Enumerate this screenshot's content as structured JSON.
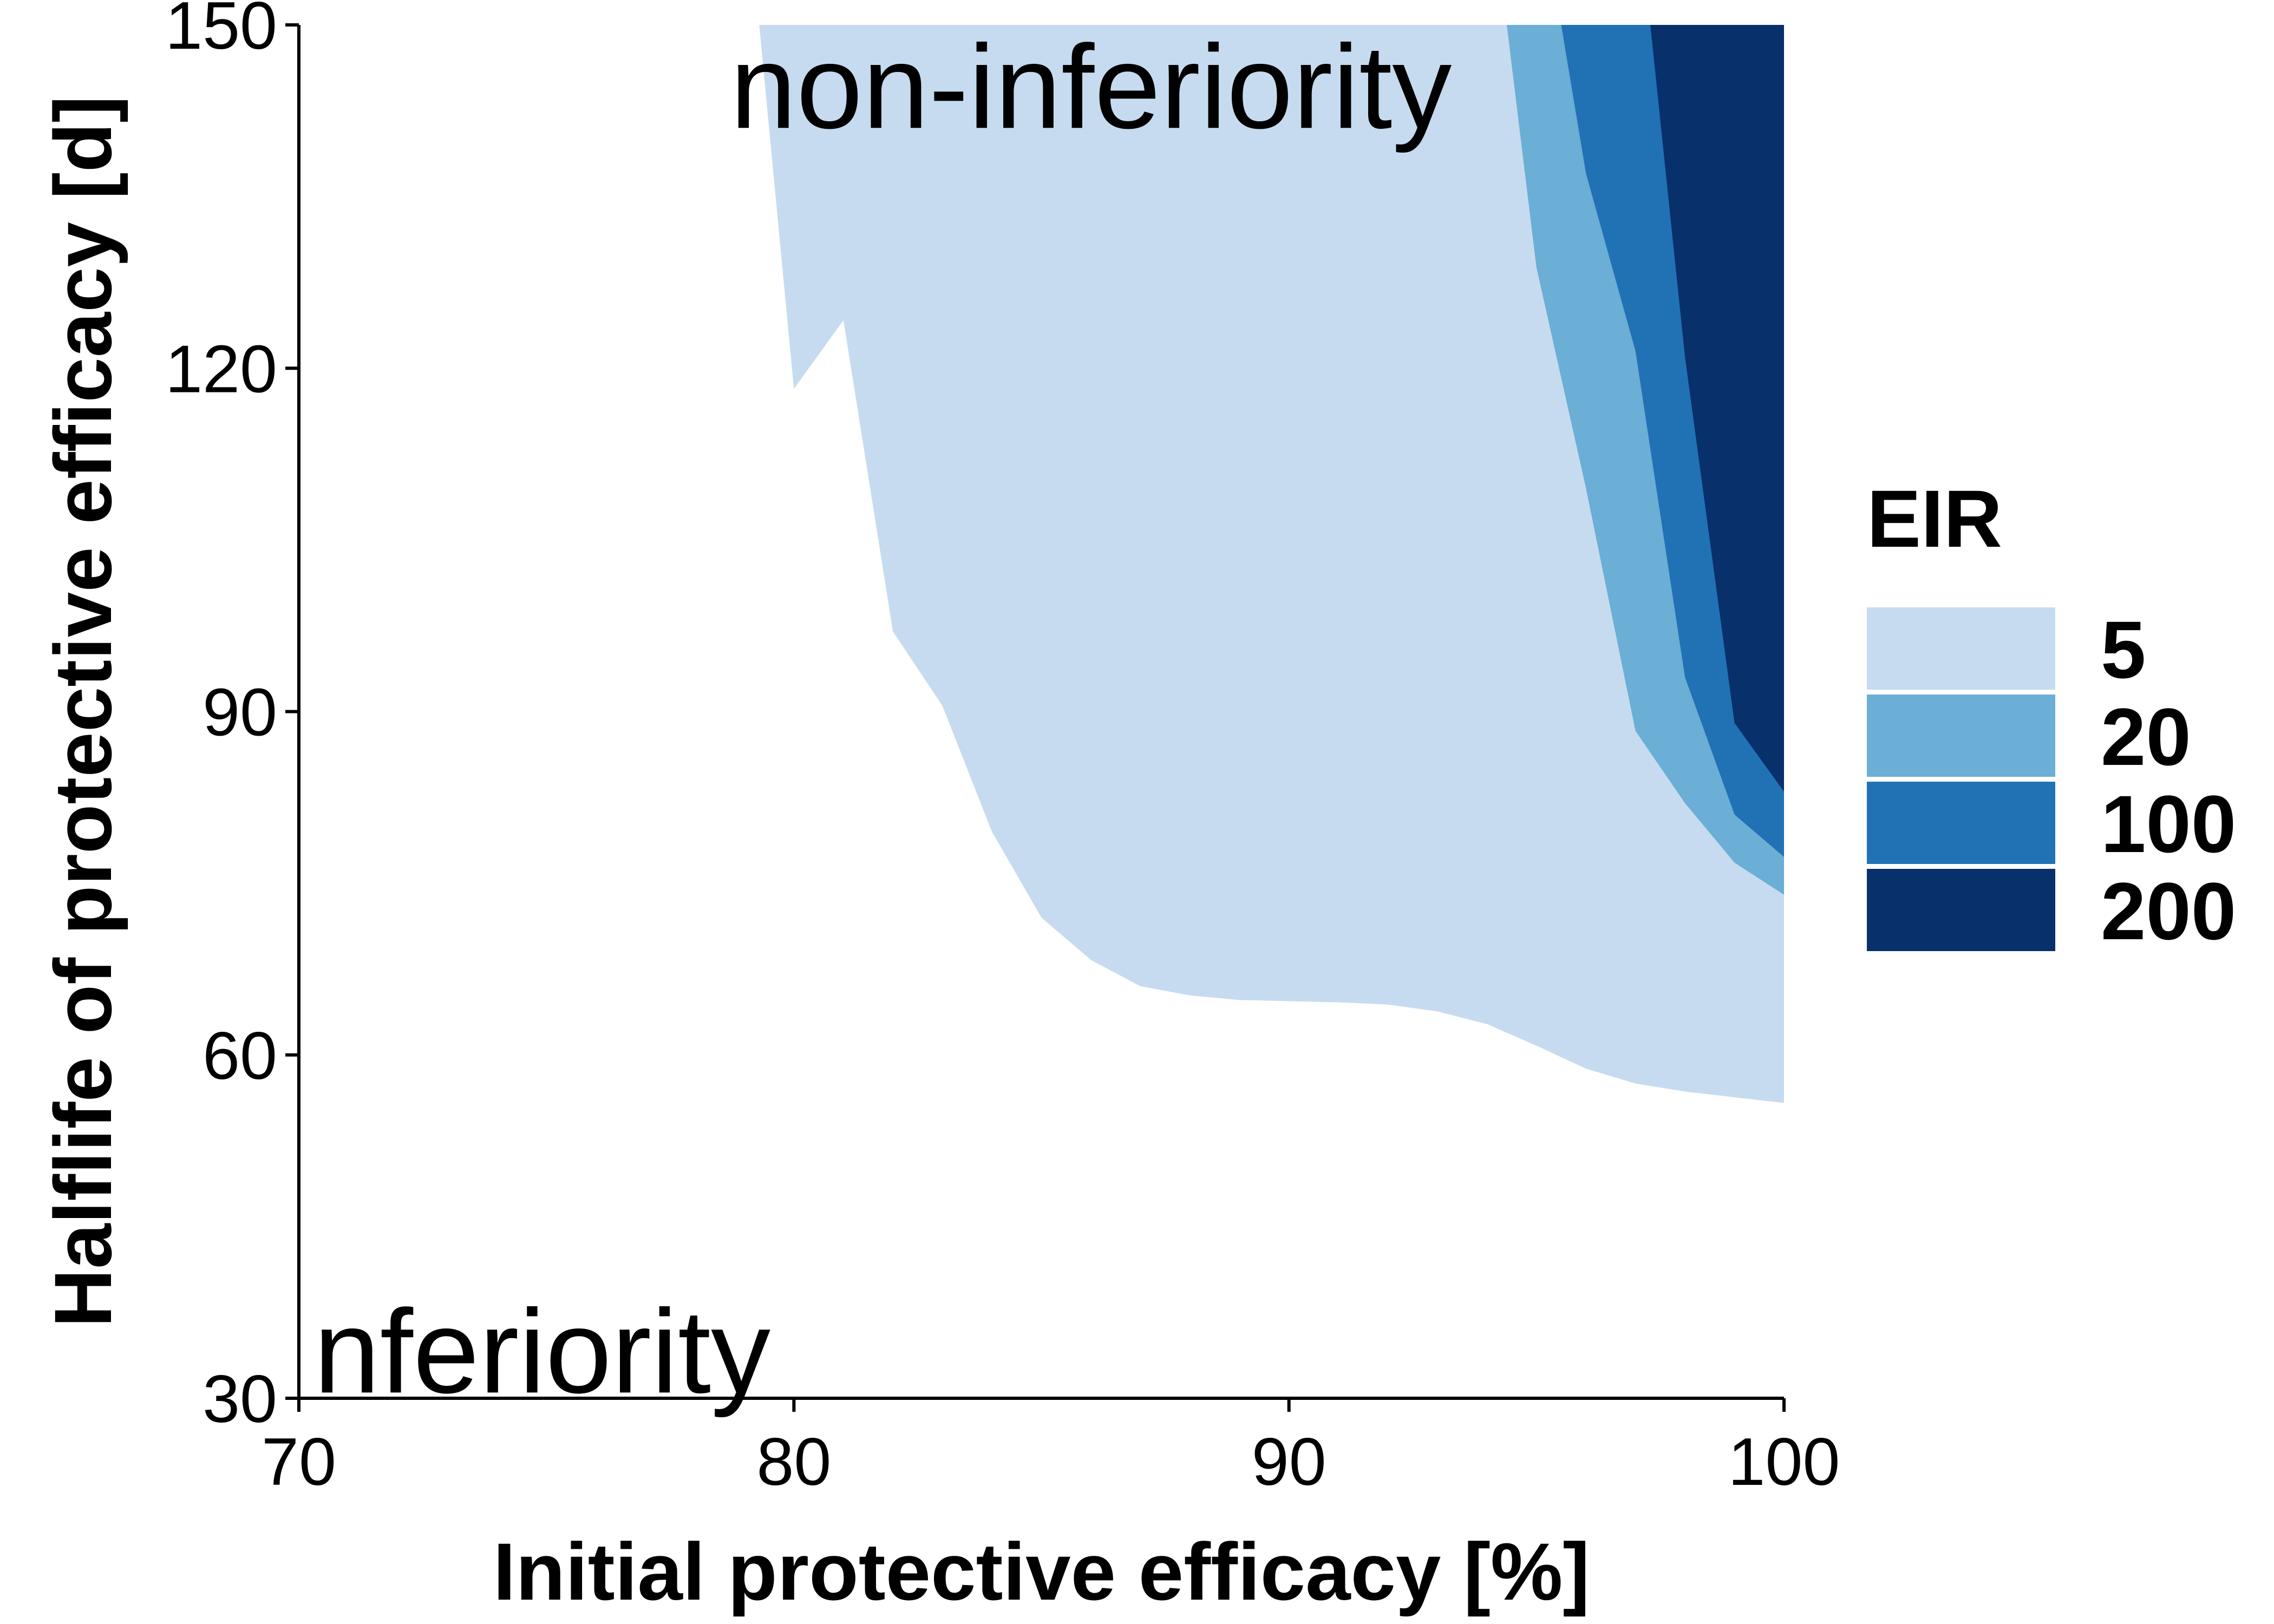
{
  "chart_data": {
    "type": "area",
    "xlabel": "Initial protective efficacy [%]",
    "ylabel": "Halflife of protective efficacy [d]",
    "xlim": [
      70,
      100
    ],
    "ylim": [
      30,
      150
    ],
    "x_ticks": [
      "70",
      "80",
      "90",
      "100"
    ],
    "y_ticks": [
      "30",
      "60",
      "90",
      "120",
      "150"
    ],
    "grid": false,
    "legend": {
      "title": "EIR",
      "placement": "right",
      "items": [
        {
          "label": "5",
          "color": "#c6dbef"
        },
        {
          "label": "20",
          "color": "#6baed6"
        },
        {
          "label": "100",
          "color": "#2171b5"
        },
        {
          "label": "200",
          "color": "#08306b"
        }
      ]
    },
    "annotations": [
      {
        "text": "non-inferiority",
        "x": 86,
        "y": 141
      },
      {
        "text": "nferiority",
        "x": 70.3,
        "y": 30.5
      }
    ],
    "series": [
      {
        "name": "5",
        "color": "#c6dbef",
        "boundary": [
          [
            79.3,
            150
          ],
          [
            80.0,
            118.2
          ],
          [
            81.0,
            124.2
          ],
          [
            82.0,
            97.0
          ],
          [
            83.0,
            90.5
          ],
          [
            84.0,
            79.5
          ],
          [
            85.0,
            72.0
          ],
          [
            86.0,
            68.3
          ],
          [
            87.0,
            66.0
          ],
          [
            88.0,
            65.2
          ],
          [
            89.0,
            64.8
          ],
          [
            90.0,
            64.7
          ],
          [
            91.0,
            64.6
          ],
          [
            92.0,
            64.4
          ],
          [
            93.0,
            63.8
          ],
          [
            94.0,
            62.7
          ],
          [
            95.0,
            60.8
          ],
          [
            96.0,
            58.8
          ],
          [
            97.0,
            57.5
          ],
          [
            98.0,
            56.8
          ],
          [
            99.0,
            56.3
          ],
          [
            100.0,
            55.8
          ]
        ]
      },
      {
        "name": "20",
        "color": "#6baed6",
        "boundary": [
          [
            94.4,
            150
          ],
          [
            95.0,
            128.8
          ],
          [
            96.0,
            109.5
          ],
          [
            97.0,
            88.3
          ],
          [
            98.0,
            82.0
          ],
          [
            99.0,
            76.8
          ],
          [
            100.0,
            74.0
          ]
        ]
      },
      {
        "name": "100",
        "color": "#2171b5",
        "boundary": [
          [
            95.5,
            150
          ],
          [
            96.0,
            137.0
          ],
          [
            97.0,
            121.5
          ],
          [
            98.0,
            93.0
          ],
          [
            99.0,
            81.0
          ],
          [
            100.0,
            77.3
          ]
        ]
      },
      {
        "name": "200",
        "color": "#08306b",
        "boundary": [
          [
            97.3,
            150
          ],
          [
            98.0,
            121.0
          ],
          [
            99.0,
            89.0
          ],
          [
            100.0,
            83.0
          ]
        ]
      }
    ]
  }
}
